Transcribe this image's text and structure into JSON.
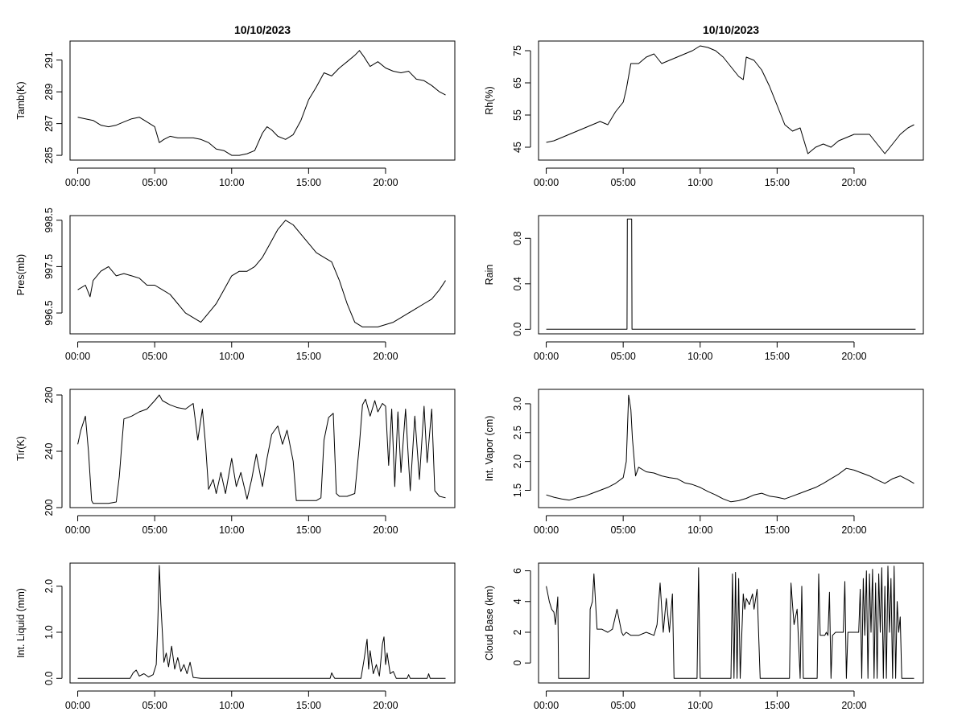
{
  "chart_data": [
    {
      "type": "line",
      "id": "tamb",
      "title": "10/10/2023",
      "xlabel": "",
      "ylabel": "Tamb(K)",
      "xlim": [
        -0.5,
        24.5
      ],
      "ylim": [
        284.7,
        292.2
      ],
      "x_ticks": [
        0,
        5,
        10,
        15,
        20
      ],
      "x_tick_labels": [
        "00:00",
        "05:00",
        "10:00",
        "15:00",
        "20:00"
      ],
      "y_ticks": [
        285,
        287,
        289,
        291
      ],
      "y_tick_labels": [
        "285",
        "287",
        "289",
        "291"
      ],
      "x": [
        0,
        0.5,
        1,
        1.5,
        2,
        2.5,
        3,
        3.5,
        4,
        4.5,
        5,
        5.3,
        5.6,
        6,
        6.5,
        7,
        7.5,
        8,
        8.5,
        9,
        9.5,
        10,
        10.5,
        11,
        11.5,
        12,
        12.3,
        12.6,
        13,
        13.5,
        14,
        14.5,
        15,
        15.5,
        16,
        16.5,
        17,
        17.5,
        18,
        18.3,
        18.6,
        19,
        19.5,
        20,
        20.5,
        21,
        21.5,
        22,
        22.5,
        23,
        23.5,
        23.9
      ],
      "values": [
        287.4,
        287.3,
        287.2,
        286.9,
        286.8,
        286.9,
        287.1,
        287.3,
        287.4,
        287.1,
        286.8,
        285.8,
        286.0,
        286.2,
        286.1,
        286.1,
        286.1,
        286.0,
        285.8,
        285.4,
        285.3,
        285.0,
        285.0,
        285.1,
        285.3,
        286.4,
        286.8,
        286.6,
        286.2,
        286.0,
        286.3,
        287.2,
        288.5,
        289.3,
        290.2,
        290.0,
        290.5,
        290.9,
        291.3,
        291.6,
        291.2,
        290.6,
        290.9,
        290.5,
        290.3,
        290.2,
        290.3,
        289.8,
        289.7,
        289.4,
        289.0,
        288.8
      ]
    },
    {
      "type": "line",
      "id": "rh",
      "title": "10/10/2023",
      "xlabel": "",
      "ylabel": "Rh(%)",
      "xlim": [
        -0.5,
        24.5
      ],
      "ylim": [
        41,
        78
      ],
      "x_ticks": [
        0,
        5,
        10,
        15,
        20
      ],
      "x_tick_labels": [
        "00:00",
        "05:00",
        "10:00",
        "15:00",
        "20:00"
      ],
      "y_ticks": [
        45,
        55,
        65,
        75
      ],
      "y_tick_labels": [
        "45",
        "55",
        "65",
        "75"
      ],
      "x": [
        0,
        0.5,
        1,
        1.5,
        2,
        2.5,
        3,
        3.5,
        4,
        4.5,
        5,
        5.2,
        5.5,
        6,
        6.5,
        7,
        7.5,
        8,
        8.5,
        9,
        9.5,
        10,
        10.5,
        11,
        11.5,
        12,
        12.5,
        12.8,
        13,
        13.5,
        14,
        14.5,
        15,
        15.5,
        16,
        16.5,
        17,
        17.5,
        18,
        18.5,
        19,
        19.5,
        20,
        20.5,
        21,
        21.5,
        22,
        22.5,
        23,
        23.5,
        23.9
      ],
      "values": [
        46.5,
        47,
        48,
        49,
        50,
        51,
        52,
        53,
        52,
        56,
        59,
        63,
        71,
        71,
        73,
        74,
        71,
        72,
        73,
        74,
        75,
        76.5,
        76,
        75,
        73,
        70,
        67,
        66,
        73,
        72,
        69,
        64,
        58,
        52,
        50,
        51,
        43,
        45,
        46,
        45,
        47,
        48,
        49,
        49,
        49,
        46,
        43,
        46,
        49,
        51,
        52
      ]
    },
    {
      "type": "line",
      "id": "pres",
      "title": "",
      "xlabel": "",
      "ylabel": "Pres(mb)",
      "xlim": [
        -0.5,
        24.5
      ],
      "ylim": [
        996.05,
        998.6
      ],
      "x_ticks": [
        0,
        5,
        10,
        15,
        20
      ],
      "x_tick_labels": [
        "00:00",
        "05:00",
        "10:00",
        "15:00",
        "20:00"
      ],
      "y_ticks": [
        996.5,
        997.5,
        998.5
      ],
      "y_tick_labels": [
        "996.5",
        "997.5",
        "998.5"
      ],
      "x": [
        0,
        0.5,
        0.8,
        1,
        1.5,
        2,
        2.5,
        3,
        3.5,
        4,
        4.5,
        5,
        5.5,
        6,
        6.5,
        7,
        7.5,
        8,
        8.5,
        9,
        9.5,
        10,
        10.5,
        11,
        11.5,
        12,
        12.5,
        13,
        13.5,
        14,
        14.5,
        15,
        15.5,
        16,
        16.5,
        17,
        17.5,
        18,
        18.5,
        19,
        19.5,
        20,
        20.5,
        21,
        21.5,
        22,
        22.5,
        23,
        23.5,
        23.9
      ],
      "values": [
        997.0,
        997.1,
        996.85,
        997.2,
        997.4,
        997.5,
        997.3,
        997.35,
        997.3,
        997.25,
        997.1,
        997.1,
        997.0,
        996.9,
        996.7,
        996.5,
        996.4,
        996.3,
        996.5,
        996.7,
        997.0,
        997.3,
        997.4,
        997.4,
        997.5,
        997.7,
        998.0,
        998.3,
        998.5,
        998.4,
        998.2,
        998.0,
        997.8,
        997.7,
        997.6,
        997.2,
        996.7,
        996.3,
        996.2,
        996.2,
        996.2,
        996.25,
        996.3,
        996.4,
        996.5,
        996.6,
        996.7,
        996.8,
        997.0,
        997.2
      ]
    },
    {
      "type": "line",
      "id": "rain",
      "title": "",
      "xlabel": "",
      "ylabel": "Rain",
      "xlim": [
        -0.5,
        24.5
      ],
      "ylim": [
        -0.04,
        1.0
      ],
      "x_ticks": [
        0,
        5,
        10,
        15,
        20
      ],
      "x_tick_labels": [
        "00:00",
        "05:00",
        "10:00",
        "15:00",
        "20:00"
      ],
      "y_ticks": [
        0.0,
        0.4,
        0.8
      ],
      "y_tick_labels": [
        "0.0",
        "0.4",
        "0.8"
      ],
      "x": [
        0,
        5.25,
        5.27,
        5.55,
        5.57,
        24
      ],
      "values": [
        0,
        0,
        0.97,
        0.97,
        0,
        0
      ]
    },
    {
      "type": "line",
      "id": "tir",
      "title": "",
      "xlabel": "",
      "ylabel": "Tir(K)",
      "xlim": [
        -0.5,
        24.5
      ],
      "ylim": [
        200,
        284
      ],
      "x_ticks": [
        0,
        5,
        10,
        15,
        20
      ],
      "x_tick_labels": [
        "00:00",
        "05:00",
        "10:00",
        "15:00",
        "20:00"
      ],
      "y_ticks": [
        200,
        240,
        280
      ],
      "y_tick_labels": [
        "200",
        "240",
        "280"
      ],
      "x": [
        0,
        0.2,
        0.5,
        0.7,
        0.9,
        1,
        1.5,
        2,
        2.5,
        2.7,
        2.9,
        3,
        3.5,
        4,
        4.5,
        5,
        5.3,
        5.5,
        6,
        6.5,
        7,
        7.5,
        7.8,
        8.1,
        8.3,
        8.5,
        8.8,
        9,
        9.3,
        9.6,
        10,
        10.3,
        10.6,
        11,
        11.3,
        11.6,
        12,
        12.3,
        12.6,
        13,
        13.3,
        13.6,
        14,
        14.2,
        14.5,
        14.8,
        15,
        15.5,
        15.8,
        16,
        16.3,
        16.6,
        16.8,
        17,
        17.5,
        18,
        18.3,
        18.5,
        18.7,
        19,
        19.3,
        19.5,
        19.8,
        20,
        20.2,
        20.4,
        20.6,
        20.8,
        21,
        21.3,
        21.6,
        21.9,
        22.2,
        22.5,
        22.7,
        23,
        23.2,
        23.5,
        23.9
      ],
      "values": [
        245,
        255,
        265,
        240,
        205,
        203,
        203,
        203,
        204,
        222,
        250,
        263,
        265,
        268,
        270,
        276,
        280,
        276,
        273,
        271,
        270,
        274,
        248,
        270,
        245,
        213,
        220,
        210,
        225,
        210,
        235,
        215,
        225,
        206,
        220,
        238,
        215,
        235,
        252,
        258,
        245,
        255,
        233,
        205,
        205,
        205,
        205,
        205,
        207,
        248,
        264,
        267,
        210,
        208,
        208,
        210,
        245,
        273,
        277,
        265,
        276,
        268,
        274,
        272,
        230,
        270,
        215,
        268,
        225,
        270,
        212,
        265,
        220,
        272,
        232,
        270,
        212,
        208,
        207
      ]
    },
    {
      "type": "line",
      "id": "vapor",
      "title": "",
      "xlabel": "",
      "ylabel": "Int. Vapor (cm)",
      "xlim": [
        -0.5,
        24.5
      ],
      "ylim": [
        1.2,
        3.25
      ],
      "x_ticks": [
        0,
        5,
        10,
        15,
        20
      ],
      "x_tick_labels": [
        "00:00",
        "05:00",
        "10:00",
        "15:00",
        "20:00"
      ],
      "y_ticks": [
        1.5,
        2.0,
        2.5,
        3.0
      ],
      "y_tick_labels": [
        "1.5",
        "2.0",
        "2.5",
        "3.0"
      ],
      "x": [
        0,
        0.5,
        1,
        1.5,
        2,
        2.5,
        3,
        3.5,
        4,
        4.5,
        4.8,
        5,
        5.2,
        5.35,
        5.5,
        5.6,
        5.8,
        6,
        6.5,
        7,
        7.5,
        8,
        8.5,
        9,
        9.5,
        10,
        10.5,
        11,
        11.5,
        12,
        12.5,
        13,
        13.5,
        14,
        14.5,
        15,
        15.5,
        16,
        16.5,
        17,
        17.5,
        18,
        18.5,
        19,
        19.5,
        20,
        20.5,
        21,
        21.5,
        22,
        22.5,
        23,
        23.5,
        23.9
      ],
      "values": [
        1.42,
        1.38,
        1.35,
        1.33,
        1.37,
        1.4,
        1.45,
        1.5,
        1.55,
        1.62,
        1.68,
        1.72,
        2.0,
        3.15,
        2.9,
        2.4,
        1.75,
        1.9,
        1.82,
        1.8,
        1.75,
        1.72,
        1.7,
        1.63,
        1.6,
        1.55,
        1.48,
        1.42,
        1.35,
        1.3,
        1.32,
        1.36,
        1.42,
        1.45,
        1.4,
        1.38,
        1.35,
        1.4,
        1.45,
        1.5,
        1.55,
        1.62,
        1.7,
        1.78,
        1.88,
        1.85,
        1.8,
        1.75,
        1.68,
        1.62,
        1.7,
        1.75,
        1.68,
        1.62
      ]
    },
    {
      "type": "line",
      "id": "liquid",
      "title": "",
      "xlabel": "",
      "ylabel": "Int. Liquid (mm)",
      "xlim": [
        -0.5,
        24.5
      ],
      "ylim": [
        -0.1,
        2.5
      ],
      "x_ticks": [
        0,
        5,
        10,
        15,
        20
      ],
      "x_tick_labels": [
        "00:00",
        "05:00",
        "10:00",
        "15:00",
        "20:00"
      ],
      "y_ticks": [
        0.0,
        1.0,
        2.0
      ],
      "y_tick_labels": [
        "0.0",
        "1.0",
        "2.0"
      ],
      "x": [
        0,
        3.4,
        3.6,
        3.8,
        4.0,
        4.3,
        4.6,
        4.9,
        5.1,
        5.2,
        5.3,
        5.4,
        5.5,
        5.6,
        5.75,
        5.9,
        6.1,
        6.3,
        6.5,
        6.7,
        6.9,
        7.1,
        7.3,
        7.5,
        8,
        16.4,
        16.5,
        16.6,
        16.7,
        18.4,
        18.6,
        18.8,
        18.9,
        19.0,
        19.2,
        19.4,
        19.6,
        19.8,
        19.9,
        20.0,
        20.1,
        20.3,
        20.5,
        20.7,
        21.4,
        21.5,
        21.6,
        22.7,
        22.8,
        22.9,
        23.9
      ],
      "values": [
        0,
        0,
        0.12,
        0.18,
        0.05,
        0.1,
        0.03,
        0.08,
        0.3,
        1.2,
        2.45,
        1.6,
        1.0,
        0.35,
        0.55,
        0.25,
        0.7,
        0.2,
        0.45,
        0.15,
        0.3,
        0.1,
        0.35,
        0.02,
        0,
        0,
        0.12,
        0.05,
        0,
        0,
        0.4,
        0.85,
        0.2,
        0.6,
        0.1,
        0.3,
        0.05,
        0.75,
        0.9,
        0.3,
        0.55,
        0.1,
        0.15,
        0,
        0,
        0.08,
        0,
        0,
        0.1,
        0,
        0
      ]
    },
    {
      "type": "line",
      "id": "cloudbase",
      "title": "",
      "xlabel": "",
      "ylabel": "Cloud Base (km)",
      "xlim": [
        -0.5,
        24.5
      ],
      "ylim": [
        -1.3,
        6.5
      ],
      "x_ticks": [
        0,
        5,
        10,
        15,
        20
      ],
      "x_tick_labels": [
        "00:00",
        "05:00",
        "10:00",
        "15:00",
        "20:00"
      ],
      "y_ticks": [
        0,
        2,
        4,
        6
      ],
      "y_tick_labels": [
        "0",
        "2",
        "4",
        "6"
      ],
      "x": [
        0,
        0.2,
        0.35,
        0.5,
        0.6,
        0.75,
        0.8,
        1.0,
        2.8,
        2.85,
        3.0,
        3.1,
        3.3,
        3.6,
        4.0,
        4.3,
        4.6,
        4.9,
        5.0,
        5.2,
        5.5,
        6.0,
        6.5,
        7.0,
        7.2,
        7.4,
        7.6,
        7.8,
        8.0,
        8.2,
        8.3,
        8.4,
        8.5,
        9.8,
        9.9,
        10.0,
        12.0,
        12.1,
        12.2,
        12.3,
        12.4,
        12.5,
        12.6,
        12.8,
        12.9,
        13.0,
        13.2,
        13.4,
        13.5,
        13.7,
        13.9,
        14.0,
        14.2,
        14.4,
        14.5,
        15.8,
        15.9,
        16.0,
        16.1,
        16.3,
        16.5,
        16.6,
        16.7,
        17.6,
        17.7,
        17.8,
        18.1,
        18.2,
        18.3,
        18.4,
        18.5,
        18.6,
        18.8,
        19.0,
        19.3,
        19.4,
        19.5,
        19.6,
        20.0,
        20.3,
        20.4,
        20.5,
        20.6,
        20.7,
        20.8,
        20.9,
        21.0,
        21.1,
        21.2,
        21.3,
        21.4,
        21.5,
        21.6,
        21.7,
        21.8,
        21.9,
        22.0,
        22.1,
        22.2,
        22.3,
        22.4,
        22.5,
        22.6,
        22.7,
        22.8,
        22.9,
        23.0,
        23.1,
        23.2,
        23.9
      ],
      "values": [
        5.0,
        4.0,
        3.5,
        3.3,
        2.5,
        4.3,
        -1,
        -1,
        -1,
        3.5,
        4.0,
        5.8,
        2.2,
        2.2,
        2.0,
        2.2,
        3.5,
        2.0,
        1.8,
        2.0,
        1.8,
        1.8,
        2.0,
        1.8,
        2.5,
        5.2,
        2.0,
        4.2,
        2.0,
        4.5,
        -1,
        -1,
        -1,
        -1,
        6.2,
        -1,
        -1,
        5.8,
        -1,
        5.9,
        -1,
        5.5,
        -1,
        4.5,
        3.5,
        4.2,
        3.8,
        4.5,
        3.5,
        4.8,
        -1,
        -1,
        -1,
        -1,
        -1,
        -1,
        5.2,
        3.8,
        2.5,
        3.5,
        -1,
        5.0,
        -1,
        -1,
        5.8,
        1.8,
        1.8,
        2.0,
        1.8,
        4.6,
        -1,
        1.8,
        2.0,
        2.0,
        2.0,
        5.3,
        -1,
        2.0,
        2.0,
        2.0,
        4.8,
        -1,
        5.5,
        1.8,
        6.0,
        -1,
        5.8,
        2.0,
        6.1,
        -1,
        5.2,
        -1,
        5.8,
        2.0,
        6.2,
        -1,
        5.0,
        -1,
        6.3,
        2.0,
        5.5,
        -1,
        6.3,
        -1,
        4.0,
        2.0,
        3.0,
        -1,
        -1,
        -1
      ]
    }
  ]
}
